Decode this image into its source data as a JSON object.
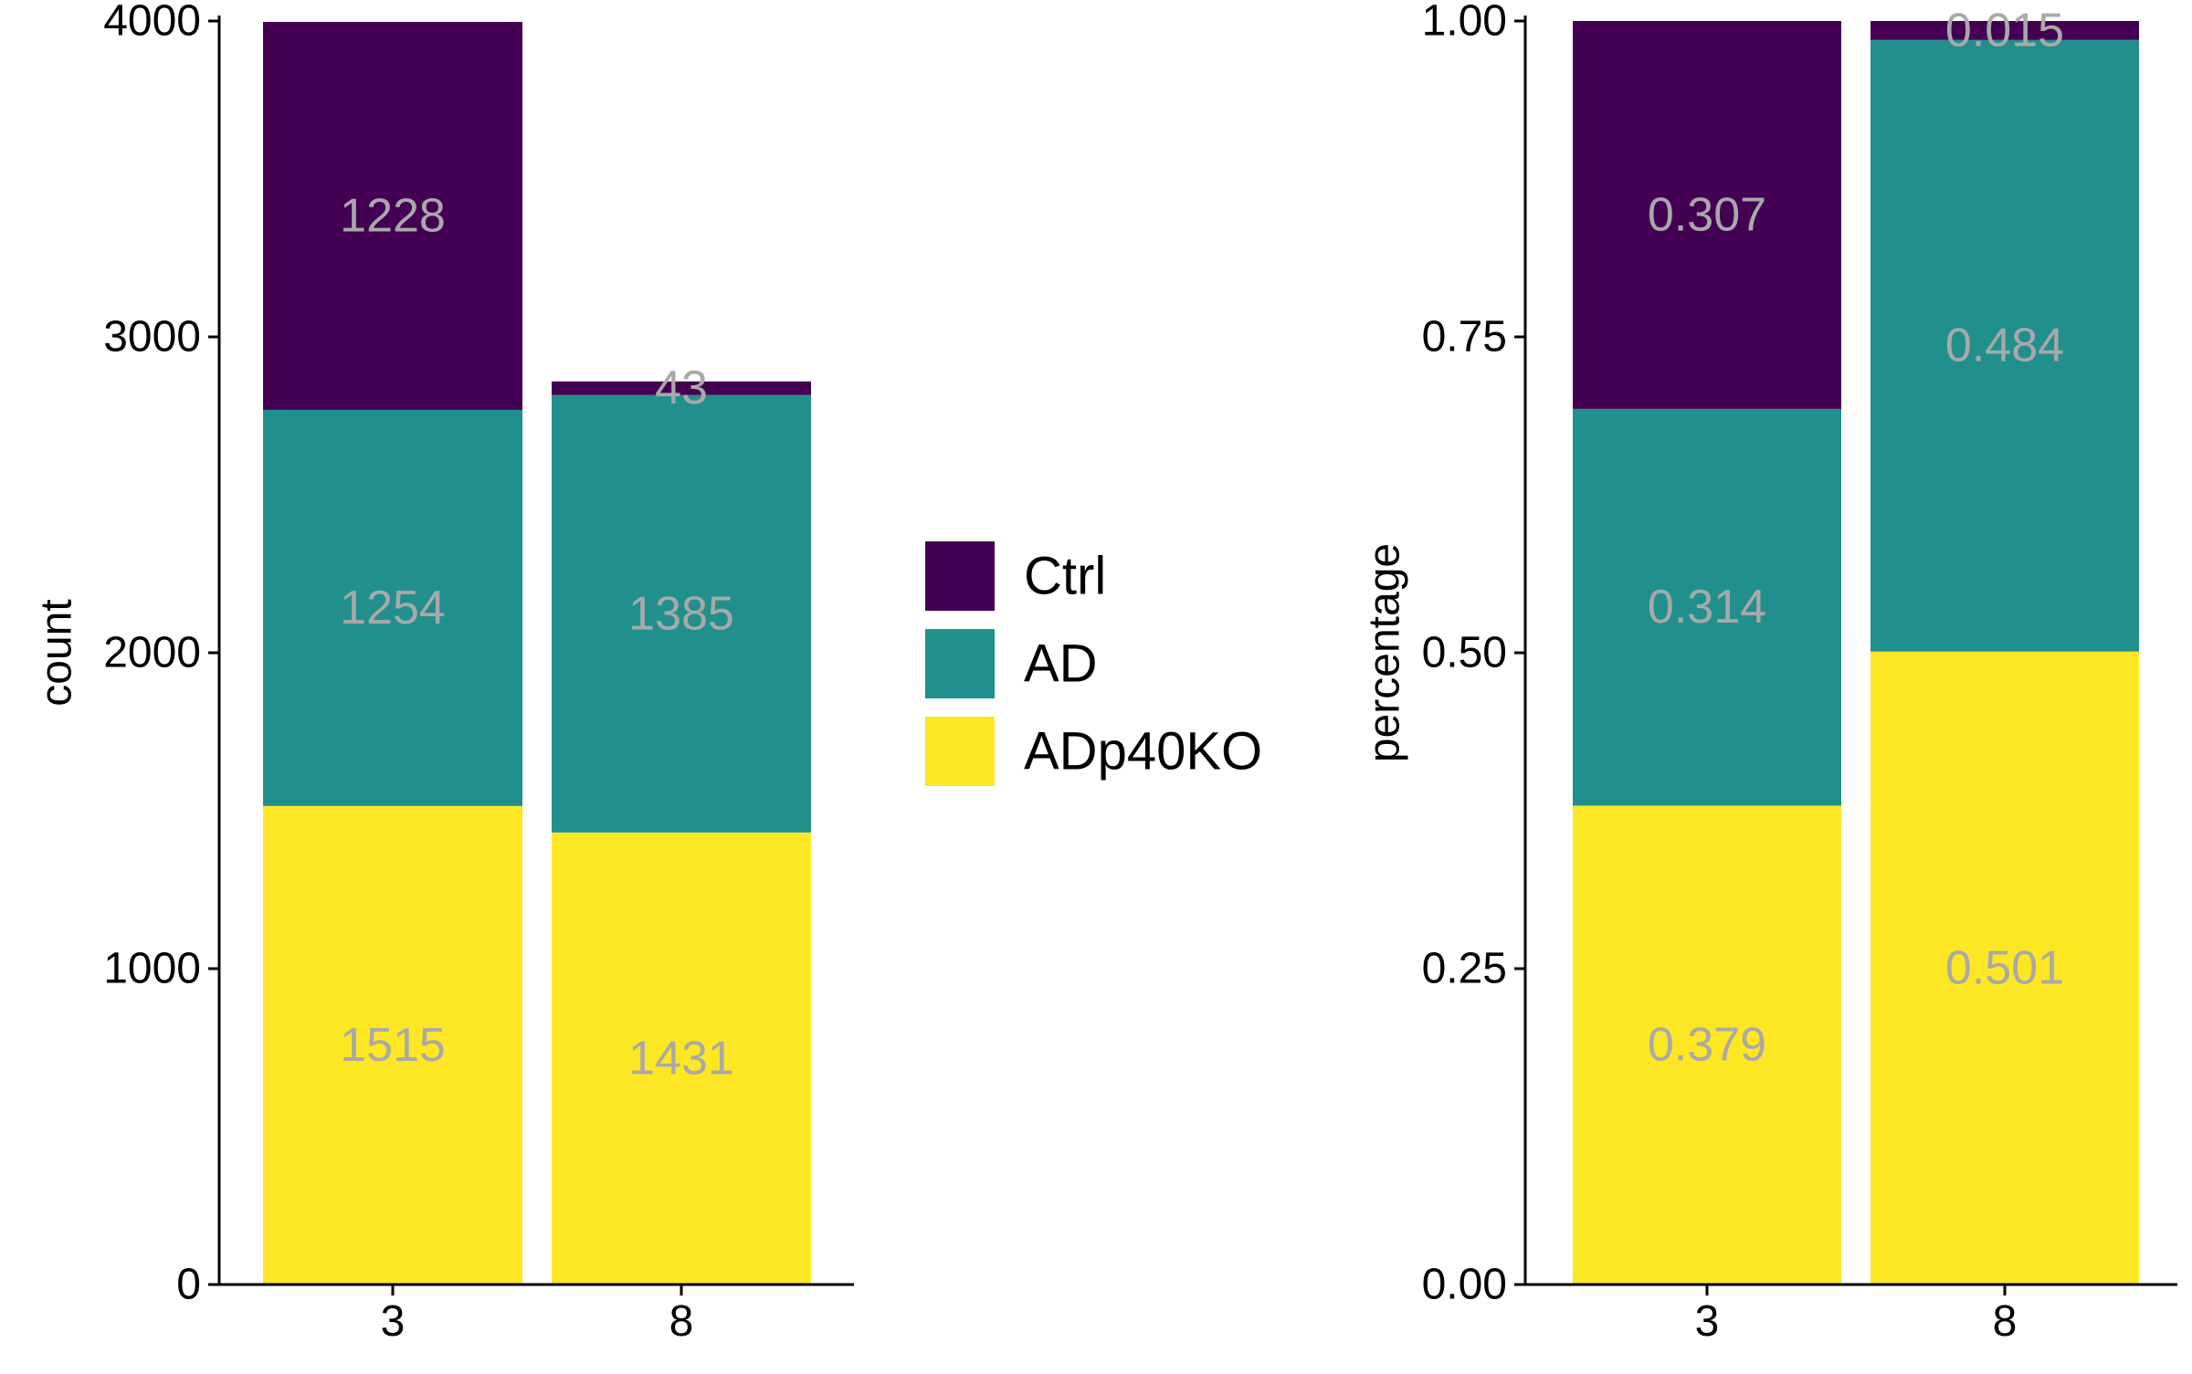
{
  "legend": {
    "items": [
      {
        "label": "Ctrl",
        "color": "#440154"
      },
      {
        "label": "AD",
        "color": "#21908C"
      },
      {
        "label": "ADp40KO",
        "color": "#FDE725"
      }
    ]
  },
  "chart_data": [
    {
      "type": "bar",
      "stacked": true,
      "ylabel": "count",
      "xlabel": "",
      "categories": [
        "3",
        "8"
      ],
      "ylim": [
        0,
        4000
      ],
      "yticks": [
        0,
        1000,
        2000,
        3000,
        4000
      ],
      "ytick_labels": [
        "0",
        "1000",
        "2000",
        "3000",
        "4000"
      ],
      "series": [
        {
          "name": "ADp40KO",
          "color": "#FDE725",
          "values": [
            1515,
            1431
          ],
          "labels": [
            "1515",
            "1431"
          ]
        },
        {
          "name": "AD",
          "color": "#21908C",
          "values": [
            1254,
            1385
          ],
          "labels": [
            "1254",
            "1385"
          ]
        },
        {
          "name": "Ctrl",
          "color": "#440154",
          "values": [
            1228,
            43
          ],
          "labels": [
            "1228",
            "43"
          ]
        }
      ],
      "grid": false
    },
    {
      "type": "bar",
      "stacked": true,
      "ylabel": "percentage",
      "xlabel": "",
      "categories": [
        "3",
        "8"
      ],
      "ylim": [
        0,
        1
      ],
      "yticks": [
        0,
        0.25,
        0.5,
        0.75,
        1
      ],
      "ytick_labels": [
        "0.00",
        "0.25",
        "0.50",
        "0.75",
        "1.00"
      ],
      "series": [
        {
          "name": "ADp40KO",
          "color": "#FDE725",
          "values": [
            0.379,
            0.501
          ],
          "labels": [
            "0.379",
            "0.501"
          ]
        },
        {
          "name": "AD",
          "color": "#21908C",
          "values": [
            0.314,
            0.484
          ],
          "labels": [
            "0.314",
            "0.484"
          ]
        },
        {
          "name": "Ctrl",
          "color": "#440154",
          "values": [
            0.307,
            0.015
          ],
          "labels": [
            "0.307",
            "0.015"
          ]
        }
      ],
      "grid": false
    }
  ]
}
